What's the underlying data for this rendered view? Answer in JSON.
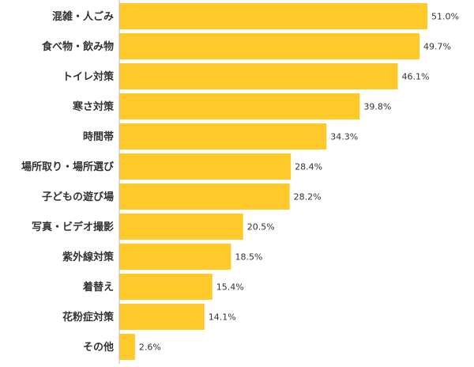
{
  "chart_data": {
    "type": "bar",
    "orientation": "horizontal",
    "title": "",
    "xlabel": "",
    "ylabel": "",
    "xlim": [
      0,
      60
    ],
    "grid": false,
    "bar_color": "#FFC929",
    "unit_suffix": "%",
    "categories": [
      "混雑・人ごみ",
      "食べ物・飲み物",
      "トイレ対策",
      "寒さ対策",
      "時間帯",
      "場所取り・場所選び",
      "子どもの遊び場",
      "写真・ビデオ撮影",
      "紫外線対策",
      "着替え",
      "花粉症対策",
      "その他"
    ],
    "values": [
      51.0,
      49.7,
      46.1,
      39.8,
      34.3,
      28.4,
      28.2,
      20.5,
      18.5,
      15.4,
      14.1,
      2.6
    ],
    "value_labels": [
      "51.0%",
      "49.7%",
      "46.1%",
      "39.8%",
      "34.3%",
      "28.4%",
      "28.2%",
      "20.5%",
      "18.5%",
      "15.4%",
      "14.1%",
      "2.6%"
    ]
  }
}
